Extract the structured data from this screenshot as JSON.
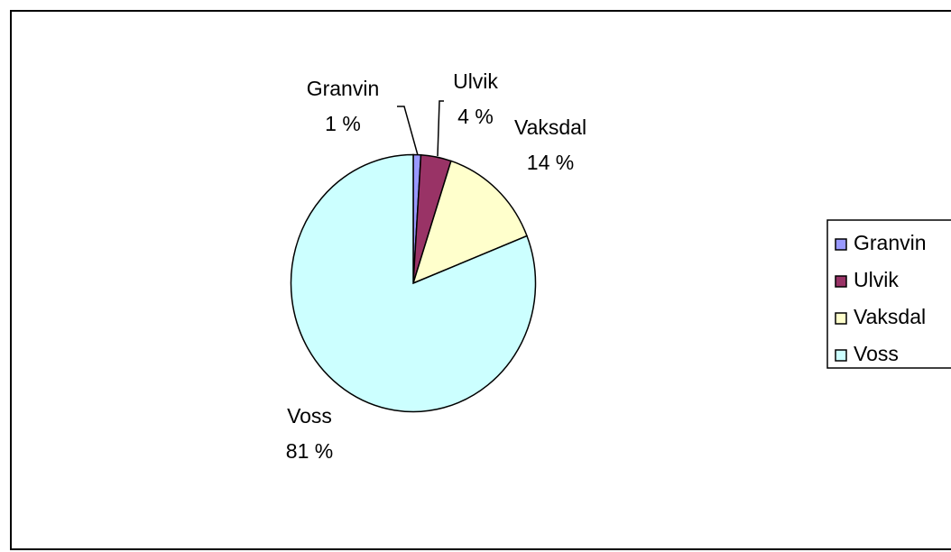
{
  "chart_data": {
    "type": "pie",
    "categories": [
      "Granvin",
      "Ulvik",
      "Vaksdal",
      "Voss"
    ],
    "values": [
      1,
      4,
      14,
      81
    ],
    "value_labels": [
      "1 %",
      "4 %",
      "14 %",
      "81 %"
    ],
    "colors": [
      "#9999ff",
      "#993366",
      "#ffffcc",
      "#ccffff"
    ],
    "legend": "right"
  }
}
